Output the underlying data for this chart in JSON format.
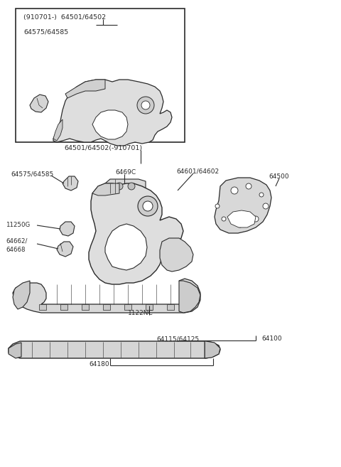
{
  "bg_color": "#ffffff",
  "line_color": "#2a2a2a",
  "fig_width": 4.8,
  "fig_height": 6.57,
  "dpi": 100,
  "labels": {
    "top_box_part1": "(910701-)  64501/64502",
    "top_box_part2": "64575/64585",
    "sep_label": "64501/64502(-910701)",
    "l_64575": "64575/64585",
    "l_6469C": "6469C",
    "l_64601": "64601/64602",
    "l_64500": "64500",
    "l_11250G": "11250G",
    "l_64662": "64662/",
    "l_64668": "64668",
    "l_1122NC": "1122NC",
    "l_64115": "64115/64125",
    "l_64100": "64100",
    "l_64180": "64180"
  }
}
